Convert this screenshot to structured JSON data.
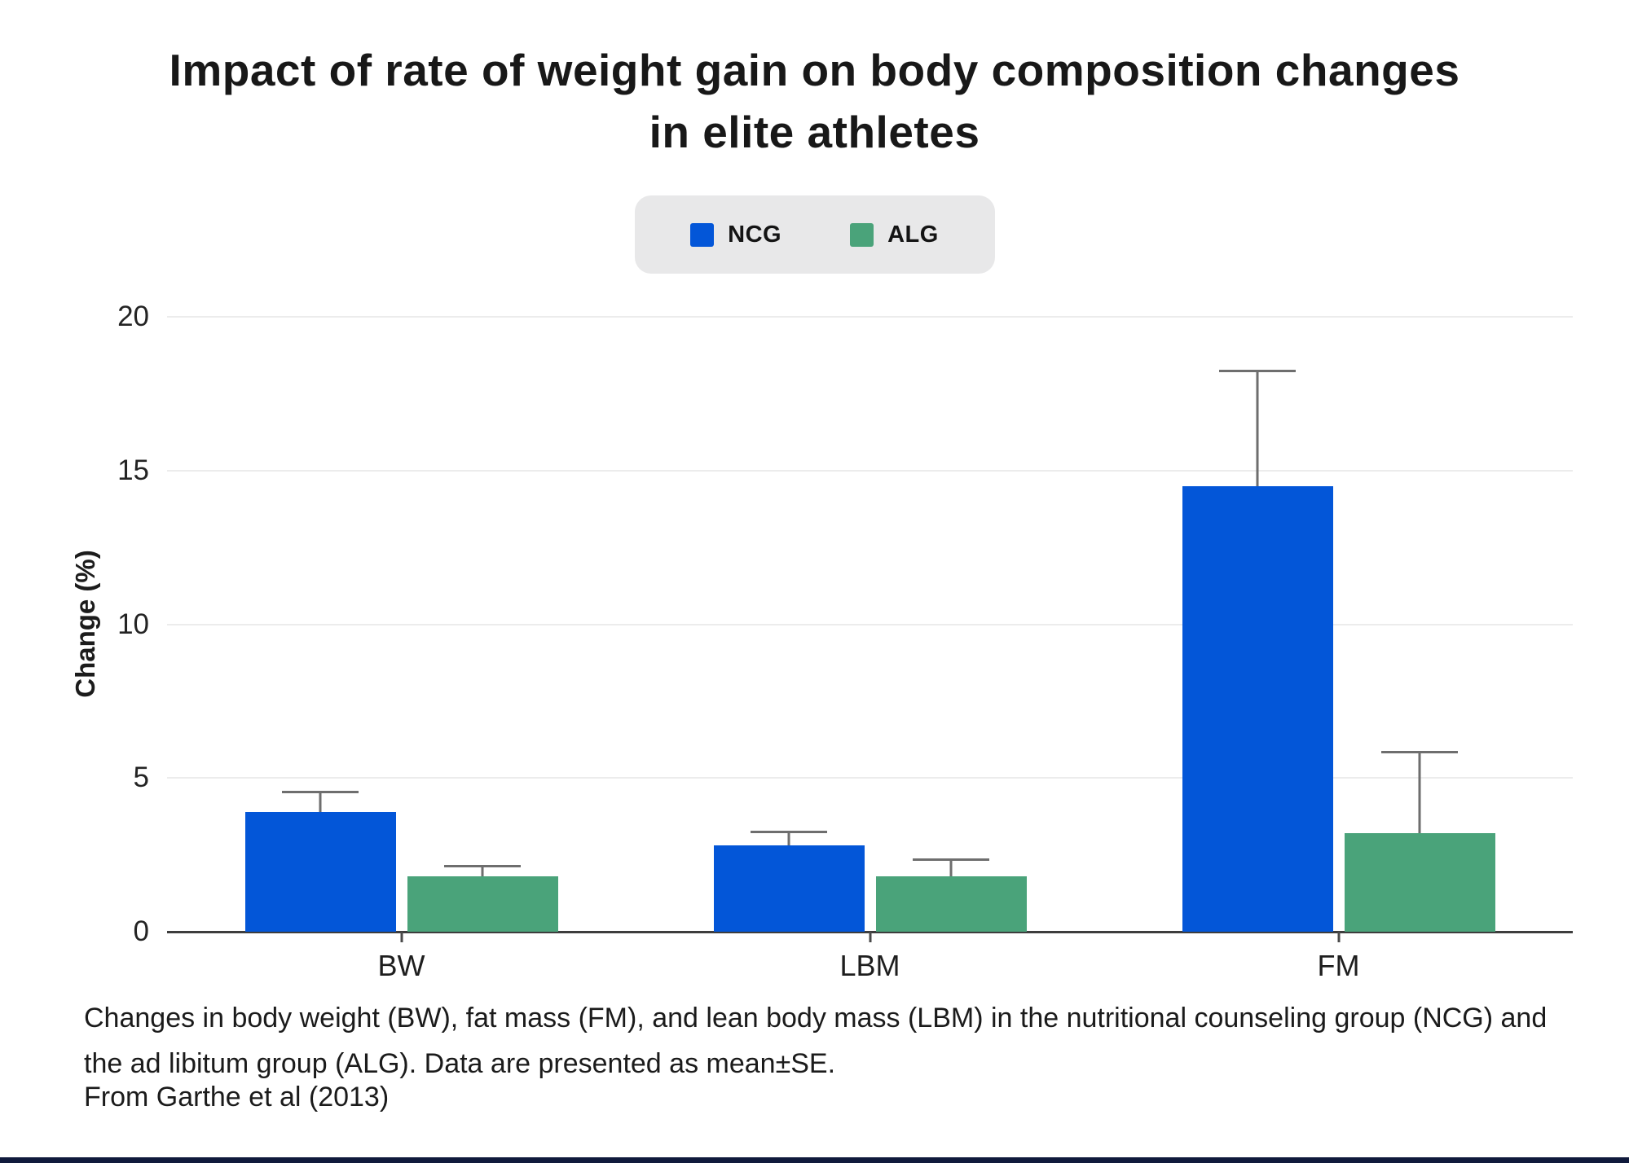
{
  "title_lines": [
    "Impact of rate of weight gain on body composition changes",
    "in elite athletes"
  ],
  "legend": {
    "items": [
      {
        "label": "NCG",
        "color": "#0356d8"
      },
      {
        "label": "ALG",
        "color": "#4aa37a"
      }
    ]
  },
  "chart_data": {
    "type": "bar",
    "title": "Impact of rate of weight gain on body composition changes in elite athletes",
    "categories": [
      "BW",
      "LBM",
      "FM"
    ],
    "series": [
      {
        "name": "NCG",
        "color": "#0356d8",
        "values": [
          3.9,
          2.8,
          14.5
        ],
        "errors": [
          0.6,
          0.4,
          3.7
        ]
      },
      {
        "name": "ALG",
        "color": "#4aa37a",
        "values": [
          1.8,
          1.8,
          3.2
        ],
        "errors": [
          0.3,
          0.5,
          2.6
        ]
      }
    ],
    "xlabel": "",
    "ylabel": "Change (%)",
    "ylim": [
      0,
      20
    ],
    "yticks": [
      0,
      5,
      10,
      15,
      20
    ],
    "grid": true,
    "legend_position": "top-center",
    "error_note": "mean±SE"
  },
  "caption": "Changes in body weight (BW), fat mass (FM), and lean body mass (LBM) in the nutritional counseling group (NCG) and the ad libitum group (ALG). Data are presented as mean±SE.",
  "source": "From Garthe et al (2013)",
  "colors": {
    "grid": "#ececec",
    "axis": "#3d3d3d",
    "error": "#6e6e6e",
    "legend_bg": "#e8e8e9",
    "footer": "#101a3c",
    "text": "#181818"
  }
}
